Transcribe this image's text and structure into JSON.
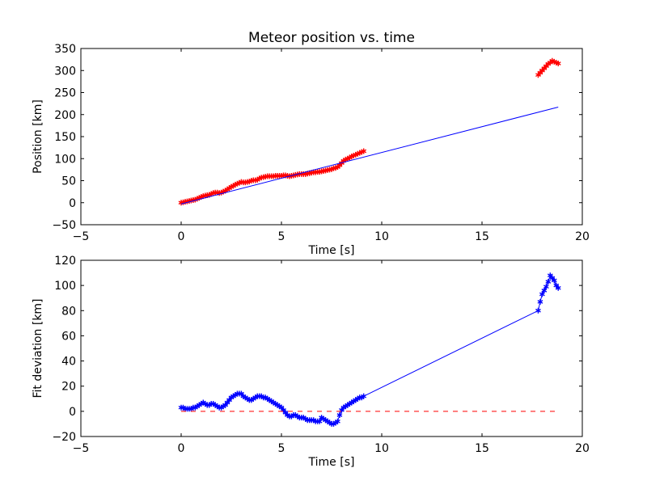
{
  "chart_data": [
    {
      "type": "scatter",
      "title": "Meteor position vs. time",
      "xlabel": "Time [s]",
      "ylabel": "Position [km]",
      "xlim": [
        -5,
        20
      ],
      "ylim": [
        -50,
        350
      ],
      "xticks": [
        "−5",
        "0",
        "5",
        "10",
        "15",
        "20"
      ],
      "yticks": [
        "−50",
        "0",
        "50",
        "100",
        "150",
        "200",
        "250",
        "300",
        "350"
      ],
      "grid": false,
      "series": [
        {
          "kind": "markers",
          "color": "#ff0000",
          "marker": "star",
          "x": [
            0.0,
            0.1,
            0.2,
            0.3,
            0.4,
            0.5,
            0.6,
            0.7,
            0.8,
            0.9,
            1.0,
            1.1,
            1.2,
            1.3,
            1.4,
            1.5,
            1.6,
            1.7,
            1.8,
            1.9,
            2.0,
            2.1,
            2.2,
            2.3,
            2.4,
            2.5,
            2.6,
            2.7,
            2.8,
            2.9,
            3.0,
            3.1,
            3.2,
            3.3,
            3.4,
            3.5,
            3.6,
            3.7,
            3.8,
            3.9,
            4.0,
            4.1,
            4.2,
            4.3,
            4.4,
            4.5,
            4.6,
            4.7,
            4.8,
            4.9,
            5.0,
            5.1,
            5.2,
            5.3,
            5.4,
            5.5,
            5.6,
            5.7,
            5.8,
            5.9,
            6.0,
            6.1,
            6.2,
            6.3,
            6.4,
            6.5,
            6.6,
            6.7,
            6.8,
            6.9,
            7.0,
            7.1,
            7.2,
            7.3,
            7.4,
            7.5,
            7.6,
            7.7,
            7.8,
            7.9,
            8.0,
            8.1,
            8.2,
            8.3,
            8.4,
            8.5,
            8.6,
            8.7,
            8.8,
            8.9,
            9.0,
            9.1,
            17.8,
            17.9,
            18.0,
            18.1,
            18.2,
            18.3,
            18.4,
            18.5,
            18.6,
            18.7,
            18.8
          ],
          "y": [
            0,
            1,
            2,
            3,
            4,
            5,
            6,
            7,
            9,
            11,
            13,
            15,
            16,
            17,
            18,
            20,
            22,
            23,
            23,
            22,
            23,
            25,
            27,
            30,
            33,
            36,
            38,
            41,
            43,
            45,
            47,
            46,
            46,
            47,
            48,
            50,
            51,
            51,
            52,
            55,
            57,
            58,
            59,
            60,
            60,
            60,
            60,
            61,
            61,
            61,
            61,
            62,
            62,
            61,
            60,
            61,
            62,
            63,
            64,
            65,
            65,
            65,
            65,
            66,
            67,
            68,
            69,
            69,
            70,
            70,
            71,
            72,
            73,
            74,
            75,
            76,
            78,
            79,
            81,
            85,
            90,
            95,
            98,
            100,
            102,
            105,
            107,
            109,
            111,
            113,
            115,
            117,
            290,
            295,
            300,
            305,
            310,
            315,
            318,
            322,
            320,
            318,
            316
          ]
        },
        {
          "kind": "line",
          "color": "#0000ff",
          "x": [
            0,
            18.8
          ],
          "y": [
            -3,
            217
          ]
        }
      ]
    },
    {
      "type": "scatter",
      "title": "",
      "xlabel": "Time [s]",
      "ylabel": "Fit deviation [km]",
      "xlim": [
        -5,
        20
      ],
      "ylim": [
        -20,
        120
      ],
      "xticks": [
        "−5",
        "0",
        "5",
        "10",
        "15",
        "20"
      ],
      "yticks": [
        "−20",
        "0",
        "20",
        "40",
        "60",
        "80",
        "100",
        "120"
      ],
      "grid": false,
      "series": [
        {
          "kind": "markers-line",
          "color": "#0000ff",
          "marker": "star",
          "x": [
            0.0,
            0.1,
            0.2,
            0.3,
            0.4,
            0.5,
            0.6,
            0.7,
            0.8,
            0.9,
            1.0,
            1.1,
            1.2,
            1.3,
            1.4,
            1.5,
            1.6,
            1.7,
            1.8,
            1.9,
            2.0,
            2.1,
            2.2,
            2.3,
            2.4,
            2.5,
            2.6,
            2.7,
            2.8,
            2.9,
            3.0,
            3.1,
            3.2,
            3.3,
            3.4,
            3.5,
            3.6,
            3.7,
            3.8,
            3.9,
            4.0,
            4.1,
            4.2,
            4.3,
            4.4,
            4.5,
            4.6,
            4.7,
            4.8,
            4.9,
            5.0,
            5.1,
            5.2,
            5.3,
            5.4,
            5.5,
            5.6,
            5.7,
            5.8,
            5.9,
            6.0,
            6.1,
            6.2,
            6.3,
            6.4,
            6.5,
            6.6,
            6.7,
            6.8,
            6.9,
            7.0,
            7.1,
            7.2,
            7.3,
            7.4,
            7.5,
            7.6,
            7.7,
            7.8,
            7.9,
            8.0,
            8.1,
            8.2,
            8.3,
            8.4,
            8.5,
            8.6,
            8.7,
            8.8,
            8.9,
            9.0,
            9.1,
            17.8,
            17.9,
            18.0,
            18.1,
            18.2,
            18.3,
            18.4,
            18.5,
            18.6,
            18.7,
            18.8
          ],
          "y": [
            3,
            3,
            2,
            2,
            2,
            2,
            3,
            3,
            4,
            5,
            6,
            7,
            6,
            5,
            5,
            6,
            6,
            5,
            4,
            3,
            3,
            4,
            5,
            7,
            9,
            11,
            12,
            13,
            14,
            14,
            14,
            12,
            11,
            10,
            9,
            9,
            10,
            11,
            12,
            12,
            12,
            11,
            11,
            10,
            9,
            8,
            7,
            6,
            5,
            4,
            3,
            1,
            -1,
            -3,
            -4,
            -4,
            -3,
            -3,
            -4,
            -5,
            -5,
            -5,
            -6,
            -7,
            -7,
            -7,
            -7,
            -8,
            -8,
            -8,
            -5,
            -6,
            -7,
            -8,
            -9,
            -10,
            -10,
            -9,
            -8,
            -3,
            1,
            3,
            4,
            5,
            6,
            7,
            8,
            9,
            10,
            11,
            11,
            12,
            80,
            87,
            93,
            96,
            99,
            103,
            108,
            106,
            104,
            100,
            98
          ]
        },
        {
          "kind": "dashed-line",
          "color": "#ff0000",
          "x": [
            0,
            18.8
          ],
          "y": [
            0,
            0
          ]
        }
      ]
    }
  ]
}
